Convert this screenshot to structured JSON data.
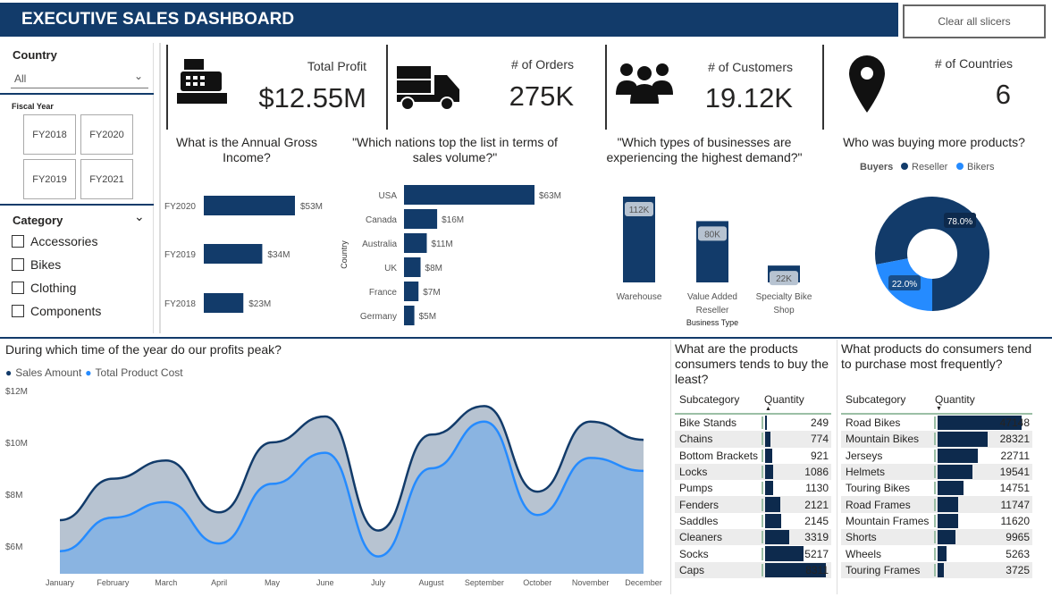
{
  "header": {
    "title": "EXECUTIVE SALES DASHBOARD",
    "clear_slicers": "Clear all slicers"
  },
  "slicers": {
    "country": {
      "label": "Country",
      "value": "All"
    },
    "fiscal_year": {
      "label": "Fiscal Year",
      "options": [
        "FY2018",
        "FY2020",
        "FY2019",
        "FY2021"
      ]
    },
    "category": {
      "label": "Category",
      "options": [
        "Accessories",
        "Bikes",
        "Clothing",
        "Components"
      ]
    }
  },
  "kpis": [
    {
      "label": "Total Profit",
      "value": "$12.55M",
      "icon": "cash-register-icon"
    },
    {
      "label": "# of Orders",
      "value": "275K",
      "icon": "delivery-truck-icon"
    },
    {
      "label": "# of Customers",
      "value": "19.12K",
      "icon": "people-group-icon"
    },
    {
      "label": "# of Countries",
      "value": "6",
      "icon": "map-pin-icon"
    }
  ],
  "colors": {
    "dark": "#123b6a",
    "light": "#258bff",
    "area_dark": "#b7c3d1",
    "area_light": "#8ab4e1"
  },
  "chart_data": [
    {
      "type": "bar",
      "title": "What is the Annual Gross Income?",
      "categories": [
        "FY2020",
        "FY2019",
        "FY2018"
      ],
      "values": [
        53,
        34,
        23
      ],
      "labels": [
        "$53M",
        "$34M",
        "$23M"
      ]
    },
    {
      "type": "bar",
      "title": "\"Which nations top the list in terms of sales volume?\"",
      "ylabel": "Country",
      "categories": [
        "USA",
        "Canada",
        "Australia",
        "UK",
        "France",
        "Germany"
      ],
      "values": [
        63,
        16,
        11,
        8,
        7,
        5
      ],
      "labels": [
        "$63M",
        "$16M",
        "$11M",
        "$8M",
        "$7M",
        "$5M"
      ]
    },
    {
      "type": "bar",
      "title": "\"Which types of businesses are experiencing the highest demand?\"",
      "xlabel": "Business Type",
      "categories": [
        "Warehouse",
        "Value Added Reseller",
        "Specialty Bike Shop"
      ],
      "values": [
        112,
        80,
        22
      ],
      "labels": [
        "112K",
        "80K",
        "22K"
      ]
    },
    {
      "type": "pie",
      "title": "Who was buying more products?",
      "legend_title": "Buyers",
      "series": [
        {
          "name": "Reseller",
          "value": 78.0,
          "label": "78.0%"
        },
        {
          "name": "Bikers",
          "value": 22.0,
          "label": "22.0%"
        }
      ]
    },
    {
      "type": "area",
      "title": "During which time of the year do our profits peak?",
      "legend": "top-left",
      "categories": [
        "January",
        "February",
        "March",
        "April",
        "May",
        "June",
        "July",
        "August",
        "September",
        "October",
        "November",
        "December"
      ],
      "yticks": [
        "$6M",
        "$8M",
        "$10M",
        "$12M"
      ],
      "ylim": [
        5,
        12
      ],
      "series": [
        {
          "name": "Sales Amount",
          "values": [
            7.0,
            8.6,
            9.3,
            7.3,
            10.0,
            11.0,
            6.6,
            10.3,
            11.4,
            8.1,
            10.8,
            10.1
          ]
        },
        {
          "name": "Total Product Cost",
          "values": [
            5.8,
            7.1,
            7.7,
            6.1,
            8.4,
            9.6,
            5.6,
            9.0,
            10.8,
            7.2,
            9.4,
            8.9
          ]
        }
      ]
    }
  ],
  "least": {
    "title": "What are the products consumers tends to buy the least?",
    "col1": "Subcategory",
    "col2": "Quantity",
    "rows": [
      [
        "Bike Stands",
        249
      ],
      [
        "Chains",
        774
      ],
      [
        "Bottom Brackets",
        921
      ],
      [
        "Locks",
        1086
      ],
      [
        "Pumps",
        1130
      ],
      [
        "Fenders",
        2121
      ],
      [
        "Saddles",
        2145
      ],
      [
        "Cleaners",
        3319
      ],
      [
        "Socks",
        5217
      ],
      [
        "Caps",
        8311
      ]
    ]
  },
  "most": {
    "title": "What products do consumers tend to purchase most frequently?",
    "col1": "Subcategory",
    "col2": "Quantity",
    "rows": [
      [
        "Road Bikes",
        47148
      ],
      [
        "Mountain Bikes",
        28321
      ],
      [
        "Jerseys",
        22711
      ],
      [
        "Helmets",
        19541
      ],
      [
        "Touring Bikes",
        14751
      ],
      [
        "Road Frames",
        11747
      ],
      [
        "Mountain Frames",
        11620
      ],
      [
        "Shorts",
        9965
      ],
      [
        "Wheels",
        5263
      ],
      [
        "Touring Frames",
        3725
      ]
    ]
  }
}
